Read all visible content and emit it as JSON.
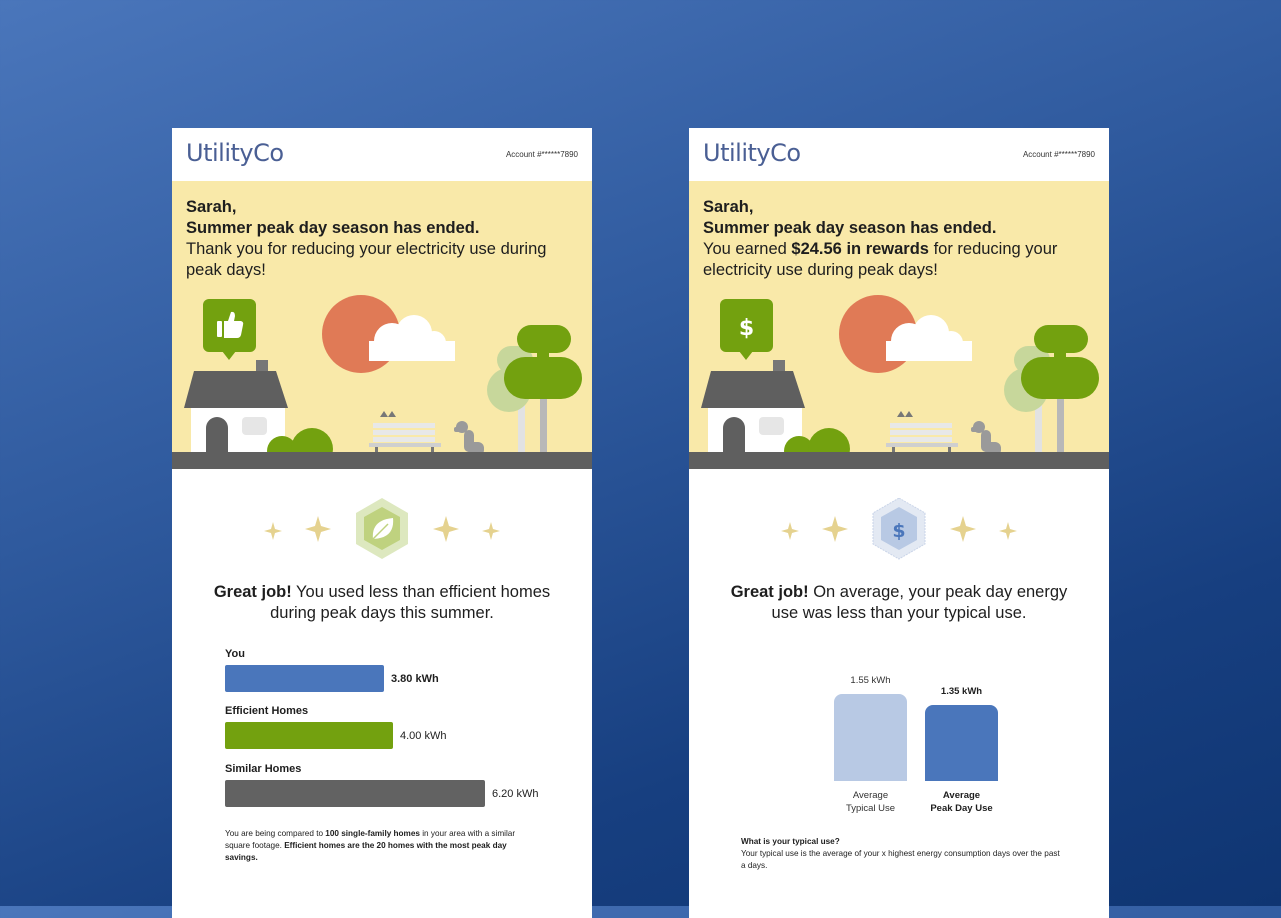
{
  "left": {
    "brand": "UtilityCo",
    "account": "Account #******7890",
    "greeting": {
      "name": "Sarah,",
      "headline": "Summer peak day season has ended.",
      "body": "Thank you for reducing your electricity use during peak days!"
    },
    "message": {
      "strong": "Great job!",
      "text": " You used less than efficient homes during peak days this summer."
    },
    "bars": [
      {
        "label": "You",
        "value": 3.8,
        "display": "3.80 kWh",
        "color": "#4a76bb"
      },
      {
        "label": "Efficient Homes",
        "value": 4.0,
        "display": "4.00 kWh",
        "color": "#73a10f"
      },
      {
        "label": "Similar Homes",
        "value": 6.2,
        "display": "6.20 kWh",
        "color": "#626262"
      }
    ],
    "footnote": {
      "p1": "You are being compared to ",
      "b1": "100 single-family homes",
      "p2": " in your area with a similar square footage. ",
      "b2": "Efficient homes are the 20 homes with the most peak day savings."
    }
  },
  "right": {
    "brand": "UtilityCo",
    "account": "Account #******7890",
    "greeting": {
      "name": "Sarah,",
      "headline": "Summer peak day season has ended.",
      "body_pre": "You earned ",
      "body_strong": "$24.56 in rewards",
      "body_post": " for reducing your electricity use during peak days!"
    },
    "message": {
      "strong": "Great job!",
      "text": " On average, your peak day energy use was less than your typical use."
    },
    "chart_data": {
      "type": "bar",
      "categories": [
        "Average Typical Use",
        "Average Peak Day Use"
      ],
      "values": [
        1.55,
        1.35
      ],
      "value_labels": [
        "1.55 kWh",
        "1.35 kWh"
      ],
      "category_lines": [
        [
          "Average",
          "Typical Use"
        ],
        [
          "Average",
          "Peak Day Use"
        ]
      ],
      "colors": [
        "#b8c9e4",
        "#4a76bb"
      ],
      "ylim": [
        0,
        1.55
      ]
    },
    "faq": {
      "question": "What is your typical use?",
      "answer": "Your typical use is the average of your x highest energy consumption days over the past a days."
    }
  },
  "colors": {
    "hero_bg": "#f9e9a9",
    "brand": "#4a5f94",
    "sun": "#e07a56",
    "green": "#73a10f",
    "sparkle": "#e5d28f"
  },
  "icons": {
    "left_bubble": "thumbs-up-icon",
    "right_bubble": "dollar-icon",
    "left_badge": "leaf-icon",
    "right_badge": "dollar-badge-icon"
  }
}
